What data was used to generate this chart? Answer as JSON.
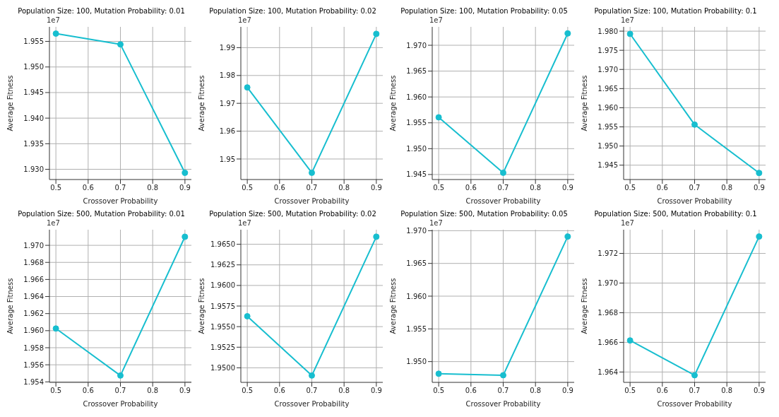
{
  "chart_data": [
    {
      "type": "line",
      "title": "Population Size: 100, Mutation Probability: 0.01",
      "xlabel": "Crossover Probability",
      "ylabel": "Average Fitness",
      "annotations": [
        "1e7"
      ],
      "x": [
        0.5,
        0.7,
        0.9
      ],
      "series": [
        {
          "color": "#17becf",
          "values": [
            1.95652,
            1.95441,
            1.92932
          ]
        }
      ],
      "xlim": [
        0.48,
        0.92
      ],
      "xticks": [
        0.5,
        0.6,
        0.7,
        0.8,
        0.9
      ],
      "ylim": [
        1.928,
        1.95784
      ],
      "yticks": [
        {
          "value": 1.93,
          "label": "1.930"
        },
        1.935,
        {
          "value": 1.94,
          "label": "1.940"
        },
        1.945,
        {
          "value": 1.95,
          "label": "1.950"
        },
        1.955
      ],
      "grid": true,
      "marker": "circle",
      "line_style": "solid"
    },
    {
      "type": "line",
      "title": "Population Size: 100, Mutation Probability: 0.02",
      "xlabel": "Crossover Probability",
      "ylabel": "Average Fitness",
      "annotations": [
        "1e7"
      ],
      "x": [
        0.5,
        0.7,
        0.9
      ],
      "series": [
        {
          "color": "#17becf",
          "values": [
            1.97571,
            1.94506,
            1.99494
          ]
        }
      ],
      "xlim": [
        0.48,
        0.92
      ],
      "xticks": [
        0.5,
        0.6,
        0.7,
        0.8,
        0.9
      ],
      "ylim": [
        1.94263,
        1.99746
      ],
      "yticks": [
        1.95,
        1.96,
        1.97,
        1.98,
        1.99
      ],
      "grid": true,
      "marker": "circle",
      "line_style": "solid"
    },
    {
      "type": "line",
      "title": "Population Size: 100, Mutation Probability: 0.05",
      "xlabel": "Crossover Probability",
      "ylabel": "Average Fitness",
      "annotations": [
        "1e7"
      ],
      "x": [
        0.5,
        0.7,
        0.9
      ],
      "series": [
        {
          "color": "#17becf",
          "values": [
            1.95606,
            1.94534,
            1.97229
          ]
        }
      ],
      "xlim": [
        0.48,
        0.92
      ],
      "xticks": [
        0.5,
        0.6,
        0.7,
        0.8,
        0.9
      ],
      "ylim": [
        1.94403,
        1.97356
      ],
      "yticks": [
        1.945,
        {
          "value": 1.95,
          "label": "1.950"
        },
        1.955,
        {
          "value": 1.96,
          "label": "1.960"
        },
        1.965,
        {
          "value": 1.97,
          "label": "1.970"
        }
      ],
      "grid": true,
      "marker": "circle",
      "line_style": "solid"
    },
    {
      "type": "line",
      "title": "Population Size: 100, Mutation Probability: 0.1",
      "xlabel": "Crossover Probability",
      "ylabel": "Average Fitness",
      "annotations": [
        "1e7"
      ],
      "x": [
        0.5,
        0.7,
        0.9
      ],
      "series": [
        {
          "color": "#17becf",
          "values": [
            1.97928,
            1.95559,
            1.94296
          ]
        }
      ],
      "xlim": [
        0.48,
        0.92
      ],
      "xticks": [
        0.5,
        0.6,
        0.7,
        0.8,
        0.9
      ],
      "ylim": [
        1.94125,
        1.98112
      ],
      "yticks": [
        1.945,
        {
          "value": 1.95,
          "label": "1.950"
        },
        1.955,
        {
          "value": 1.96,
          "label": "1.960"
        },
        1.965,
        {
          "value": 1.97,
          "label": "1.970"
        },
        1.975,
        {
          "value": 1.98,
          "label": "1.980"
        }
      ],
      "grid": true,
      "marker": "circle",
      "line_style": "solid"
    },
    {
      "type": "line",
      "title": "Population Size: 500, Mutation Probability: 0.01",
      "xlabel": "Crossover Probability",
      "ylabel": "Average Fitness",
      "annotations": [
        "1e7"
      ],
      "x": [
        0.5,
        0.7,
        0.9
      ],
      "series": [
        {
          "color": "#17becf",
          "values": [
            1.96025,
            1.95474,
            1.971
          ]
        }
      ],
      "xlim": [
        0.48,
        0.92
      ],
      "xticks": [
        0.5,
        0.6,
        0.7,
        0.8,
        0.9
      ],
      "ylim": [
        1.95394,
        1.97183
      ],
      "yticks": [
        1.954,
        1.956,
        1.958,
        {
          "value": 1.96,
          "label": "1.960"
        },
        1.962,
        1.964,
        1.966,
        1.968,
        {
          "value": 1.97,
          "label": "1.970"
        }
      ],
      "grid": true,
      "marker": "circle",
      "line_style": "solid"
    },
    {
      "type": "line",
      "title": "Population Size: 500, Mutation Probability: 0.02",
      "xlabel": "Crossover Probability",
      "ylabel": "Average Fitness",
      "annotations": [
        "1e7"
      ],
      "x": [
        0.5,
        0.7,
        0.9
      ],
      "series": [
        {
          "color": "#17becf",
          "values": [
            1.95626,
            1.94906,
            1.96592
          ]
        }
      ],
      "xlim": [
        0.48,
        0.92
      ],
      "xticks": [
        0.5,
        0.6,
        0.7,
        0.8,
        0.9
      ],
      "ylim": [
        1.94823,
        1.96677
      ],
      "yticks": [
        {
          "value": 1.95,
          "label": "1.9500"
        },
        1.9525,
        {
          "value": 1.955,
          "label": "1.9550"
        },
        1.9575,
        {
          "value": 1.96,
          "label": "1.9600"
        },
        1.9625,
        {
          "value": 1.965,
          "label": "1.9650"
        }
      ],
      "grid": true,
      "marker": "circle",
      "line_style": "solid"
    },
    {
      "type": "line",
      "title": "Population Size: 500, Mutation Probability: 0.05",
      "xlabel": "Crossover Probability",
      "ylabel": "Average Fitness",
      "annotations": [
        "1e7"
      ],
      "x": [
        0.5,
        0.7,
        0.9
      ],
      "series": [
        {
          "color": "#17becf",
          "values": [
            1.94815,
            1.94792,
            1.96911
          ]
        }
      ],
      "xlim": [
        0.48,
        0.92
      ],
      "xticks": [
        0.5,
        0.6,
        0.7,
        0.8,
        0.9
      ],
      "ylim": [
        1.94683,
        1.97015
      ],
      "yticks": [
        {
          "value": 1.95,
          "label": "1.950"
        },
        1.955,
        {
          "value": 1.96,
          "label": "1.960"
        },
        1.965,
        {
          "value": 1.97,
          "label": "1.970"
        }
      ],
      "grid": true,
      "marker": "circle",
      "line_style": "solid"
    },
    {
      "type": "line",
      "title": "Population Size: 500, Mutation Probability: 0.1",
      "xlabel": "Crossover Probability",
      "ylabel": "Average Fitness",
      "annotations": [
        "1e7"
      ],
      "x": [
        0.5,
        0.7,
        0.9
      ],
      "series": [
        {
          "color": "#17becf",
          "values": [
            1.96613,
            1.96378,
            1.97314
          ]
        }
      ],
      "xlim": [
        0.48,
        0.92
      ],
      "xticks": [
        0.5,
        0.6,
        0.7,
        0.8,
        0.9
      ],
      "ylim": [
        1.9633,
        1.9736
      ],
      "yticks": [
        1.964,
        1.966,
        1.968,
        {
          "value": 1.97,
          "label": "1.970"
        },
        1.972
      ],
      "grid": true,
      "marker": "circle",
      "line_style": "solid"
    }
  ]
}
